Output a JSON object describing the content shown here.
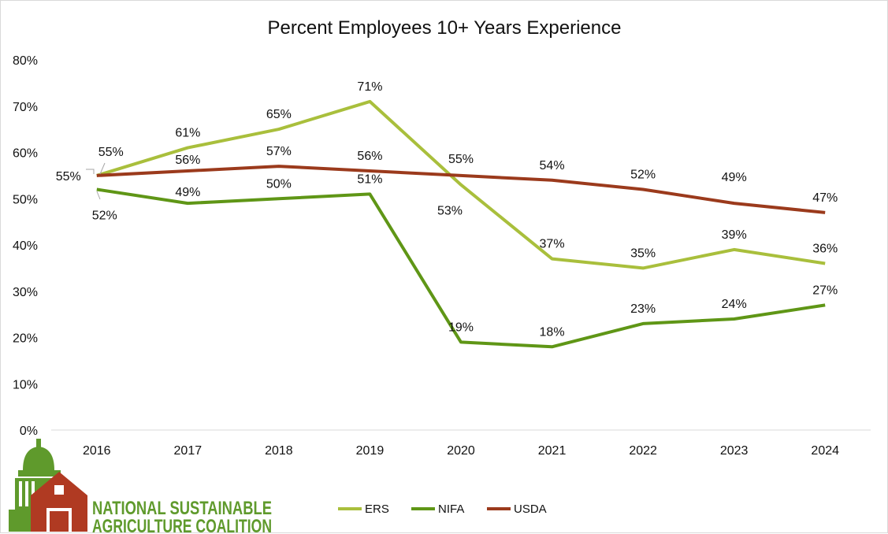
{
  "chart_data": {
    "type": "line",
    "title": "Percent Employees 10+ Years Experience",
    "x": [
      "2016",
      "2017",
      "2018",
      "2019",
      "2020",
      "2021",
      "2022",
      "2023",
      "2024"
    ],
    "ylim": [
      0,
      80
    ],
    "yticks": [
      "0%",
      "10%",
      "20%",
      "30%",
      "40%",
      "50%",
      "60%",
      "70%",
      "80%"
    ],
    "grid": false,
    "legend_position": "bottom",
    "series": [
      {
        "name": "ERS",
        "color": "#a9bf3c",
        "values": [
          55,
          61,
          65,
          71,
          53,
          37,
          35,
          39,
          36
        ],
        "labels": [
          "55%",
          "61%",
          "65%",
          "71%",
          "53%",
          "37%",
          "35%",
          "39%",
          "36%"
        ]
      },
      {
        "name": "NIFA",
        "color": "#5f9616",
        "values": [
          52,
          49,
          50,
          51,
          19,
          18,
          23,
          24,
          27
        ],
        "labels": [
          "52%",
          "49%",
          "50%",
          "51%",
          "19%",
          "18%",
          "23%",
          "24%",
          "27%"
        ]
      },
      {
        "name": "USDA",
        "color": "#9b3a1c",
        "values": [
          55,
          56,
          57,
          56,
          55,
          54,
          52,
          49,
          47
        ],
        "labels": [
          "55%",
          "56%",
          "57%",
          "56%",
          "55%",
          "54%",
          "52%",
          "49%",
          "47%"
        ]
      }
    ]
  },
  "logo": {
    "line1": "NATIONAL SUSTAINABLE",
    "line2": "AGRICULTURE COALITION",
    "colors": {
      "dome": "#5f9a2c",
      "barn": "#b03a22"
    }
  }
}
